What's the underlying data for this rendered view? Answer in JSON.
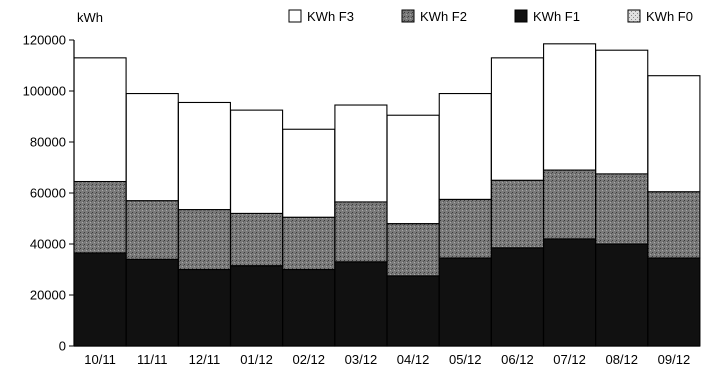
{
  "chart_data": {
    "type": "bar",
    "stacked": true,
    "ylabel": "kWh",
    "ylim": [
      0,
      120000
    ],
    "yticks": [
      0,
      20000,
      40000,
      60000,
      80000,
      100000,
      120000
    ],
    "ytick_labels": [
      "0",
      "20000",
      "40000",
      "60000",
      "80000",
      "100000",
      "120000"
    ],
    "categories": [
      "10/11",
      "11/11",
      "12/11",
      "01/12",
      "02/12",
      "03/12",
      "04/12",
      "05/12",
      "06/12",
      "07/12",
      "08/12",
      "09/12"
    ],
    "grid": false,
    "legend_position": "top",
    "legend": [
      "KWh F3",
      "KWh F2",
      "KWh F1",
      "KWh F0"
    ],
    "series": [
      {
        "name": "KWh F0",
        "color": "#bdbdbd",
        "values": [
          0,
          0,
          0,
          0,
          0,
          0,
          0,
          0,
          0,
          0,
          0,
          0
        ]
      },
      {
        "name": "KWh F1",
        "color": "#111111",
        "values": [
          36500,
          34000,
          30000,
          31500,
          30000,
          33000,
          27500,
          34500,
          38500,
          42000,
          40000,
          34500
        ]
      },
      {
        "name": "KWh F2",
        "color": "#6e6e6e",
        "values": [
          28000,
          23000,
          23500,
          20500,
          20500,
          23500,
          20500,
          23000,
          26500,
          27000,
          27500,
          26000
        ]
      },
      {
        "name": "KWh F3",
        "color": "#ffffff",
        "values": [
          48500,
          42000,
          42000,
          40500,
          34500,
          38000,
          42500,
          41500,
          48000,
          49500,
          48500,
          45500
        ]
      }
    ],
    "totals": [
      113000,
      99000,
      95500,
      92500,
      85000,
      94500,
      90500,
      99000,
      113000,
      118500,
      116000,
      106000
    ]
  }
}
